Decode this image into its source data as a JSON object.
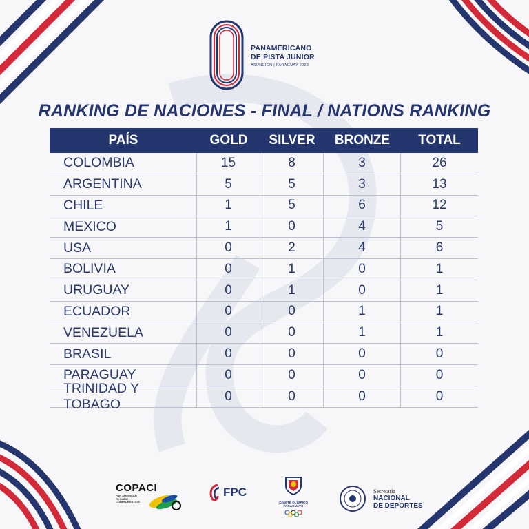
{
  "event_logo": {
    "line1": "PANAMERICANO",
    "line2": "DE PISTA JUNIOR",
    "line3": "ASUNCIÓN | PARAGUAY 2023"
  },
  "heading": "RANKING DE NACIONES - FINAL / NATIONS RANKING",
  "table": {
    "columns": [
      "PAÍS",
      "GOLD",
      "SILVER",
      "BRONZE",
      "TOTAL"
    ],
    "rows": [
      {
        "country": "COLOMBIA",
        "gold": "15",
        "silver": "8",
        "bronze": "3",
        "total": "26"
      },
      {
        "country": "ARGENTINA",
        "gold": "5",
        "silver": "5",
        "bronze": "3",
        "total": "13"
      },
      {
        "country": "CHILE",
        "gold": "1",
        "silver": "5",
        "bronze": "6",
        "total": "12"
      },
      {
        "country": "MEXICO",
        "gold": "1",
        "silver": "0",
        "bronze": "4",
        "total": "5"
      },
      {
        "country": "USA",
        "gold": "0",
        "silver": "2",
        "bronze": "4",
        "total": "6"
      },
      {
        "country": "BOLIVIA",
        "gold": "0",
        "silver": "1",
        "bronze": "0",
        "total": "1"
      },
      {
        "country": "URUGUAY",
        "gold": "0",
        "silver": "1",
        "bronze": "0",
        "total": "1"
      },
      {
        "country": "ECUADOR",
        "gold": "0",
        "silver": "0",
        "bronze": "1",
        "total": "1"
      },
      {
        "country": "VENEZUELA",
        "gold": "0",
        "silver": "0",
        "bronze": "1",
        "total": "1"
      },
      {
        "country": "BRASIL",
        "gold": "0",
        "silver": "0",
        "bronze": "0",
        "total": "0"
      },
      {
        "country": "PARAGUAY",
        "gold": "0",
        "silver": "0",
        "bronze": "0",
        "total": "0"
      },
      {
        "country": "TRINIDAD Y TOBAGO",
        "gold": "0",
        "silver": "0",
        "bronze": "0",
        "total": "0"
      }
    ]
  },
  "sponsors": {
    "copaci_name": "COPACI",
    "copaci_sub": "PAN AMERICAN CYCLING CONFEDERATION",
    "fpc_name": "FPC",
    "coparag_text": "COMITÉ OLÍMPICO PARAGUAYO",
    "snd_line1": "Secretaría",
    "snd_line2": "NACIONAL",
    "snd_line3": "DE DEPORTES"
  },
  "colors": {
    "navy": "#25356e",
    "red": "#d32a3a",
    "background": "#f7f7f9"
  },
  "icons": [
    "velodrome-logo-icon",
    "cycling-wheel-icon",
    "lion-shield-icon",
    "olympic-rings-icon",
    "paraguay-seal-icon"
  ]
}
